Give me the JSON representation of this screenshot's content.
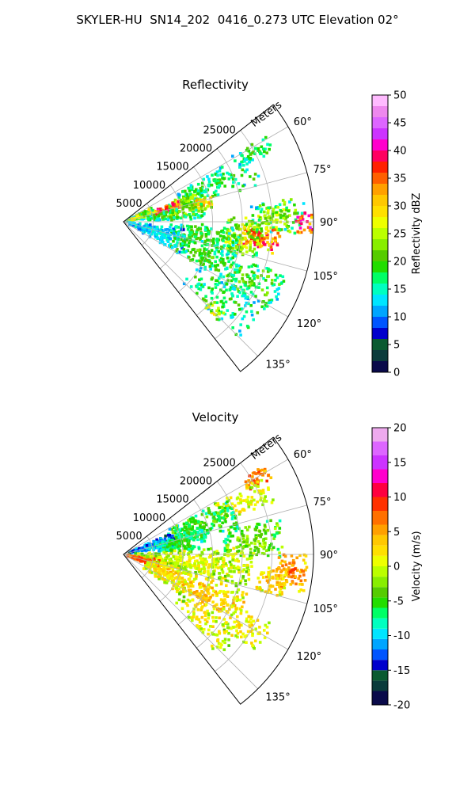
{
  "figure": {
    "title": "SKYLER-HU  SN14_202  0416_0.273 UTC Elevation 02°"
  },
  "chart_data": [
    {
      "type": "heatmap",
      "title": "Reflectivity",
      "radial_label": "Meters",
      "radial_ticks": [
        5000,
        10000,
        15000,
        20000,
        25000
      ],
      "radial_tick_labels": [
        "5000",
        "10000",
        "15000",
        "20000",
        "25000"
      ],
      "r_max": 32000,
      "theta_range_deg": [
        52,
        142
      ],
      "angular_ticks": [
        60,
        75,
        90,
        105,
        120,
        135
      ],
      "angular_tick_labels": [
        "60°",
        "75°",
        "90°",
        "105°",
        "120°",
        "135°"
      ],
      "grid": true,
      "colorbar": {
        "label": "Reflectivity dBZ",
        "range": [
          0,
          50
        ],
        "ticks": [
          0,
          5,
          10,
          15,
          20,
          25,
          30,
          35,
          40,
          45,
          50
        ],
        "tick_labels": [
          "0",
          "5",
          "10",
          "15",
          "20",
          "25",
          "30",
          "35",
          "40",
          "45",
          "50"
        ],
        "stops": [
          [
            0,
            "#0a0a4a"
          ],
          [
            2,
            "#0b3b3b"
          ],
          [
            4,
            "#0a5a30"
          ],
          [
            6,
            "#0000cc"
          ],
          [
            8,
            "#0055ff"
          ],
          [
            10,
            "#00a5ff"
          ],
          [
            12,
            "#00e5ff"
          ],
          [
            14,
            "#00ffc0"
          ],
          [
            16,
            "#00ff66"
          ],
          [
            18,
            "#22dd00"
          ],
          [
            20,
            "#55cc00"
          ],
          [
            22,
            "#88ee00"
          ],
          [
            24,
            "#bbff00"
          ],
          [
            26,
            "#eeff00"
          ],
          [
            28,
            "#ffe000"
          ],
          [
            30,
            "#ffc800"
          ],
          [
            32,
            "#ffa000"
          ],
          [
            34,
            "#ff6000"
          ],
          [
            36,
            "#ff2000"
          ],
          [
            38,
            "#ff0060"
          ],
          [
            40,
            "#ff00cc"
          ],
          [
            42,
            "#cc33ff"
          ],
          [
            44,
            "#dd66ff"
          ],
          [
            46,
            "#ee88ee"
          ],
          [
            48,
            "#ffbbff"
          ],
          [
            50,
            "#ffe8ff"
          ]
        ]
      },
      "regions": [
        {
          "theta": 62,
          "r": 24500,
          "dth": 3,
          "dr": 3500,
          "value": 20,
          "spread": 4,
          "density": 0.75
        },
        {
          "theta": 68,
          "r": 17000,
          "dth": 7,
          "dr": 7000,
          "value": 19,
          "spread": 4,
          "density": 0.4
        },
        {
          "theta": 72,
          "r": 11000,
          "dth": 6,
          "dr": 3000,
          "value": 24,
          "spread": 5,
          "density": 0.6
        },
        {
          "theta": 74,
          "r": 7500,
          "dth": 5,
          "dr": 2500,
          "value": 38,
          "spread": 6,
          "density": 0.9
        },
        {
          "theta": 73,
          "r": 3000,
          "dth": 10,
          "dr": 2500,
          "value": 26,
          "spread": 8,
          "density": 0.8
        },
        {
          "theta": 77,
          "r": 13500,
          "dth": 4,
          "dr": 2000,
          "value": 32,
          "spread": 5,
          "density": 0.8
        },
        {
          "theta": 82,
          "r": 9000,
          "dth": 6,
          "dr": 5000,
          "value": 22,
          "spread": 5,
          "density": 0.55
        },
        {
          "theta": 88,
          "r": 26000,
          "dth": 6,
          "dr": 4500,
          "value": 24,
          "spread": 6,
          "density": 0.7
        },
        {
          "theta": 90,
          "r": 30500,
          "dth": 4,
          "dr": 1500,
          "value": 40,
          "spread": 6,
          "density": 0.85
        },
        {
          "theta": 97,
          "r": 23000,
          "dth": 5,
          "dr": 3500,
          "value": 37,
          "spread": 6,
          "density": 0.95
        },
        {
          "theta": 97,
          "r": 20500,
          "dth": 9,
          "dr": 3000,
          "value": 26,
          "spread": 5,
          "density": 0.7
        },
        {
          "theta": 100,
          "r": 14000,
          "dth": 8,
          "dr": 6000,
          "value": 20,
          "spread": 4,
          "density": 0.5
        },
        {
          "theta": 108,
          "r": 6000,
          "dth": 12,
          "dr": 5000,
          "value": 14,
          "spread": 3,
          "density": 0.5
        },
        {
          "theta": 112,
          "r": 15000,
          "dth": 8,
          "dr": 6000,
          "value": 20,
          "spread": 4,
          "density": 0.45
        },
        {
          "theta": 115,
          "r": 24000,
          "dth": 7,
          "dr": 5000,
          "value": 21,
          "spread": 5,
          "density": 0.5
        },
        {
          "theta": 128,
          "r": 21000,
          "dth": 8,
          "dr": 7000,
          "value": 19,
          "spread": 4,
          "density": 0.35
        },
        {
          "theta": 134,
          "r": 22000,
          "dth": 3,
          "dr": 2000,
          "value": 27,
          "spread": 5,
          "density": 0.5
        }
      ]
    },
    {
      "type": "heatmap",
      "title": "Velocity",
      "radial_label": "Meters",
      "radial_ticks": [
        5000,
        10000,
        15000,
        20000,
        25000
      ],
      "radial_tick_labels": [
        "5000",
        "10000",
        "15000",
        "20000",
        "25000"
      ],
      "r_max": 32000,
      "theta_range_deg": [
        52,
        142
      ],
      "angular_ticks": [
        60,
        75,
        90,
        105,
        120,
        135
      ],
      "angular_tick_labels": [
        "60°",
        "75°",
        "90°",
        "105°",
        "120°",
        "135°"
      ],
      "grid": true,
      "colorbar": {
        "label": "Velocity (m/s)",
        "range": [
          -20,
          20
        ],
        "ticks": [
          -20,
          -15,
          -10,
          -5,
          0,
          5,
          10,
          15,
          20
        ],
        "tick_labels": [
          "-20",
          "-15",
          "-10",
          "-5",
          "0",
          "5",
          "10",
          "15",
          "20"
        ],
        "stops": [
          [
            -20,
            "#0a0a4a"
          ],
          [
            -18,
            "#0b3b3b"
          ],
          [
            -16.5,
            "#0a5a30"
          ],
          [
            -15,
            "#0000cc"
          ],
          [
            -13.5,
            "#0055ff"
          ],
          [
            -12,
            "#00a5ff"
          ],
          [
            -10.5,
            "#00e5ff"
          ],
          [
            -9,
            "#00ffc0"
          ],
          [
            -7.5,
            "#00ff66"
          ],
          [
            -6,
            "#22dd00"
          ],
          [
            -4.5,
            "#55cc00"
          ],
          [
            -3,
            "#88ee00"
          ],
          [
            -1.5,
            "#bbff00"
          ],
          [
            0,
            "#eeff00"
          ],
          [
            1.5,
            "#ffe000"
          ],
          [
            3,
            "#ffc800"
          ],
          [
            4.5,
            "#ffa000"
          ],
          [
            6,
            "#ff7000"
          ],
          [
            8,
            "#ff3000"
          ],
          [
            10,
            "#ff0040"
          ],
          [
            12,
            "#ff00cc"
          ],
          [
            14,
            "#cc33ff"
          ],
          [
            16,
            "#dd66ff"
          ],
          [
            18,
            "#eeaaee"
          ],
          [
            20,
            "#ffe8ff"
          ]
        ]
      },
      "regions": [
        {
          "theta": 60,
          "r": 25500,
          "dth": 3,
          "dr": 2500,
          "value": 8,
          "spread": 3,
          "density": 0.85
        },
        {
          "theta": 66,
          "r": 22000,
          "dth": 5,
          "dr": 5000,
          "value": 2,
          "spread": 3,
          "density": 0.6
        },
        {
          "theta": 69,
          "r": 14000,
          "dth": 8,
          "dr": 6000,
          "value": -4,
          "spread": 3,
          "density": 0.6
        },
        {
          "theta": 74,
          "r": 5000,
          "dth": 8,
          "dr": 4000,
          "value": -10,
          "spread": 3,
          "density": 0.85
        },
        {
          "theta": 78,
          "r": 10000,
          "dth": 8,
          "dr": 4500,
          "value": -5,
          "spread": 3,
          "density": 0.7
        },
        {
          "theta": 84,
          "r": 22000,
          "dth": 7,
          "dr": 5000,
          "value": -2,
          "spread": 3,
          "density": 0.65
        },
        {
          "theta": 96,
          "r": 12000,
          "dth": 10,
          "dr": 10000,
          "value": 1,
          "spread": 3,
          "density": 0.55
        },
        {
          "theta": 96,
          "r": 28500,
          "dth": 6,
          "dr": 2500,
          "value": 7,
          "spread": 3,
          "density": 0.9
        },
        {
          "theta": 100,
          "r": 25500,
          "dth": 5,
          "dr": 2500,
          "value": 4,
          "spread": 3,
          "density": 0.75
        },
        {
          "theta": 105,
          "r": 3500,
          "dth": 7,
          "dr": 3000,
          "value": 9,
          "spread": 3,
          "density": 0.6
        },
        {
          "theta": 113,
          "r": 8000,
          "dth": 12,
          "dr": 4000,
          "value": 3,
          "spread": 3,
          "density": 0.6
        },
        {
          "theta": 116,
          "r": 16000,
          "dth": 10,
          "dr": 6000,
          "value": 4,
          "spread": 3,
          "density": 0.5
        },
        {
          "theta": 121,
          "r": 24000,
          "dth": 6,
          "dr": 4000,
          "value": 3,
          "spread": 3,
          "density": 0.45
        },
        {
          "theta": 130,
          "r": 17500,
          "dth": 7,
          "dr": 6000,
          "value": 2,
          "spread": 3,
          "density": 0.35
        }
      ]
    }
  ]
}
